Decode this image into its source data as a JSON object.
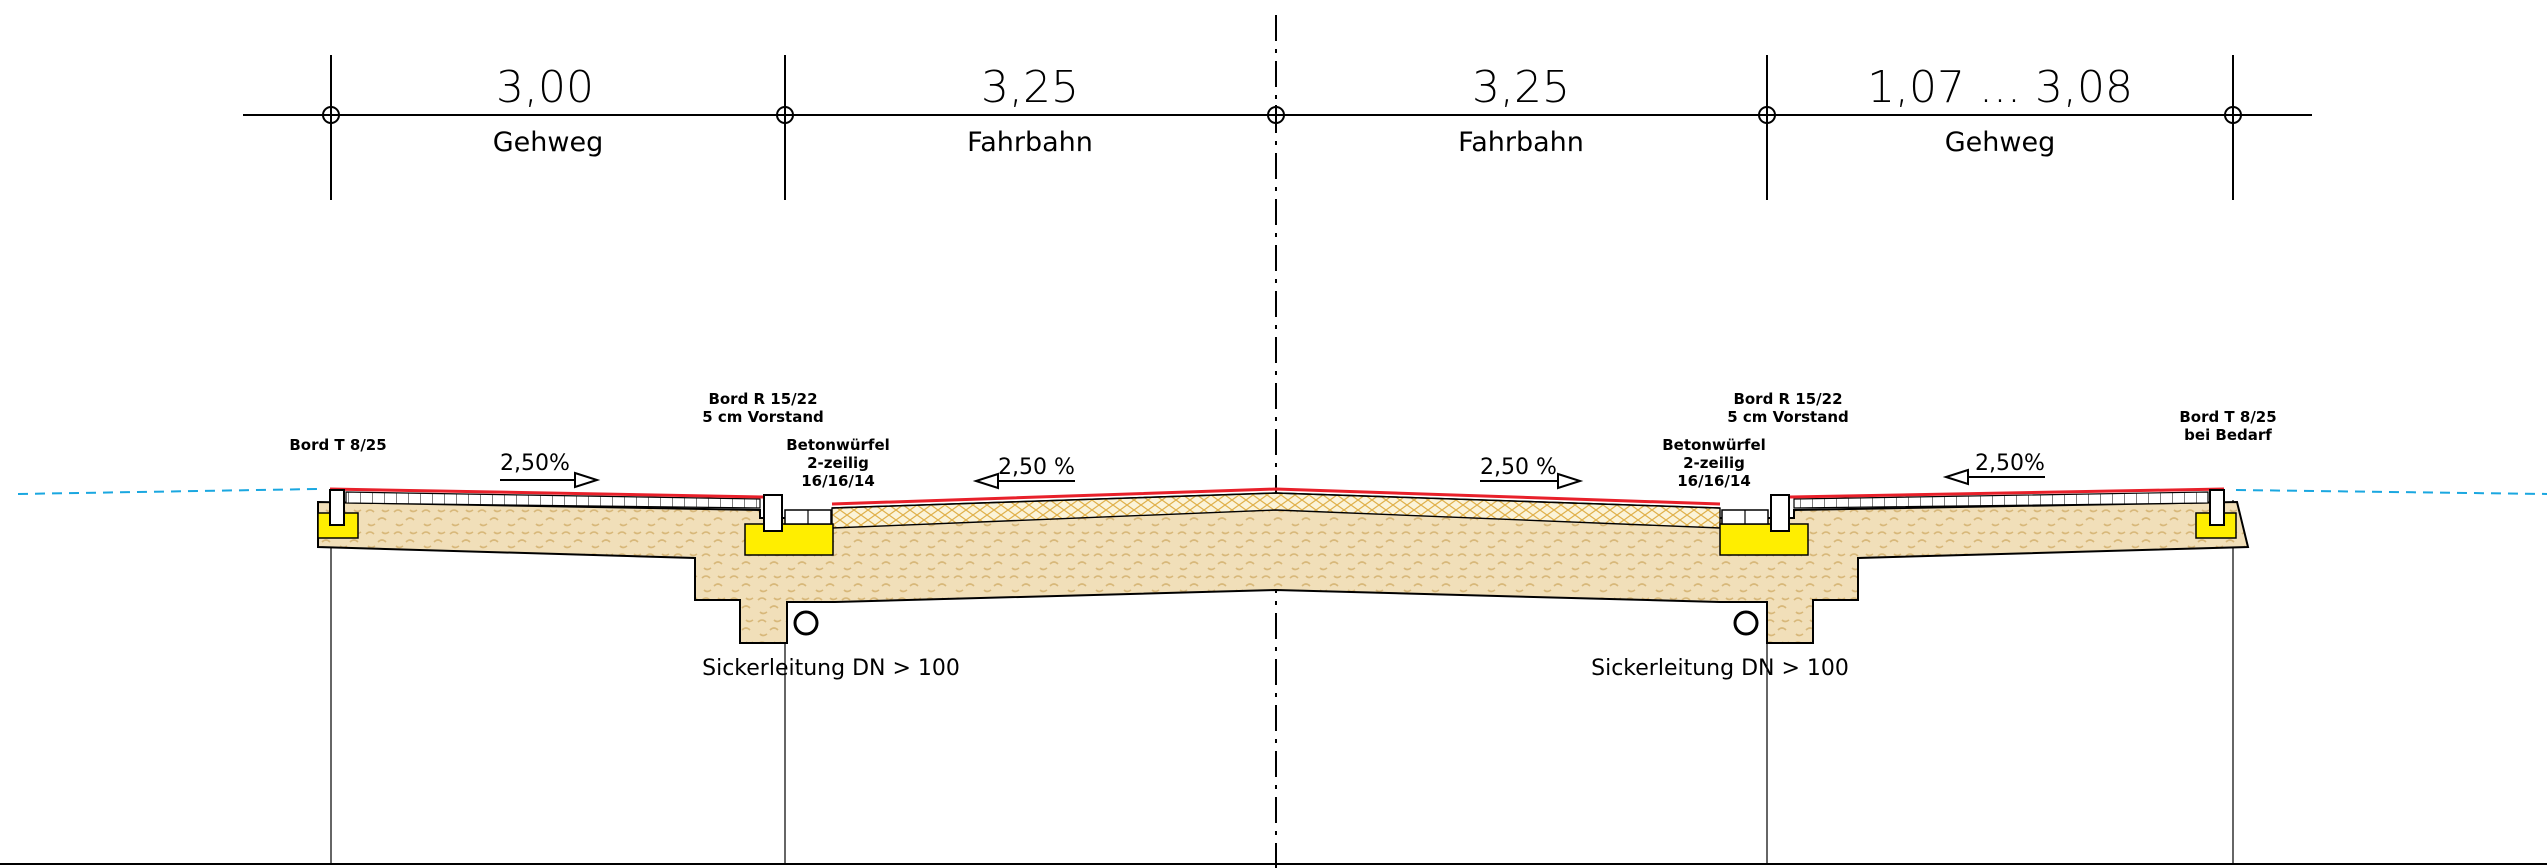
{
  "dimensions": [
    {
      "value": "3,00",
      "name": "Gehweg"
    },
    {
      "value": "3,25",
      "name": "Fahrbahn"
    },
    {
      "value": "3,25",
      "name": "Fahrbahn"
    },
    {
      "value": "1,07 ... 3,08",
      "name": "Gehweg"
    }
  ],
  "left": {
    "bord_t": "Bord T 8/25",
    "bord_r_line1": "Bord R 15/22",
    "bord_r_line2": "5 cm Vorstand",
    "beton_line1": "Betonwürfel",
    "beton_line2": "2-zeilig",
    "beton_line3": "16/16/14",
    "slope_walk": "2,50%",
    "slope_road": "2,50 %",
    "pipe": "Sickerleitung DN > 100"
  },
  "right": {
    "bord_t_line1": "Bord T 8/25",
    "bord_t_line2": "bei Bedarf",
    "bord_r_line1": "Bord R 15/22",
    "bord_r_line2": "5 cm Vorstand",
    "beton_line1": "Betonwürfel",
    "beton_line2": "2-zeilig",
    "beton_line3": "16/16/14",
    "slope_walk": "2,50%",
    "slope_road": "2,50 %",
    "pipe": "Sickerleitung DN > 100"
  },
  "colors": {
    "surface": "#e8202a",
    "subbase": "#e6c99a",
    "curb": "#ffee00",
    "ground_line": "#1aa7e0",
    "grid": "#e0b04a"
  }
}
